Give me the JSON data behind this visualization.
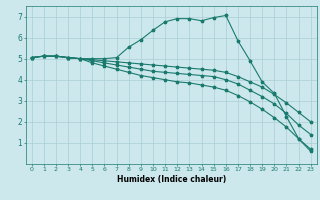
{
  "xlabel": "Humidex (Indice chaleur)",
  "bg_color": "#cce8ec",
  "line_color": "#1a7a6e",
  "grid_color": "#aacdd4",
  "xlim": [
    -0.5,
    23.5
  ],
  "ylim": [
    0,
    7.5
  ],
  "xticks": [
    0,
    1,
    2,
    3,
    4,
    5,
    6,
    7,
    8,
    9,
    10,
    11,
    12,
    13,
    14,
    15,
    16,
    17,
    18,
    19,
    20,
    21,
    22,
    23
  ],
  "yticks": [
    1,
    2,
    3,
    4,
    5,
    6,
    7
  ],
  "lines": [
    {
      "x": [
        0,
        1,
        2,
        3,
        4,
        5,
        6,
        7,
        8,
        9,
        10,
        11,
        12,
        13,
        14,
        15,
        16,
        17,
        18,
        19,
        20,
        21,
        22,
        23
      ],
      "y": [
        5.05,
        5.12,
        5.12,
        5.05,
        5.0,
        5.0,
        5.0,
        5.05,
        5.55,
        5.9,
        6.35,
        6.75,
        6.9,
        6.9,
        6.8,
        6.95,
        7.05,
        5.85,
        4.9,
        3.9,
        3.35,
        2.25,
        1.2,
        0.6
      ]
    },
    {
      "x": [
        0,
        1,
        2,
        3,
        4,
        5,
        6,
        7,
        8,
        9,
        10,
        11,
        12,
        13,
        14,
        15,
        16,
        17,
        18,
        19,
        20,
        21,
        22,
        23
      ],
      "y": [
        5.05,
        5.12,
        5.12,
        5.05,
        5.0,
        4.95,
        4.9,
        4.85,
        4.8,
        4.75,
        4.7,
        4.65,
        4.6,
        4.55,
        4.5,
        4.45,
        4.35,
        4.15,
        3.9,
        3.65,
        3.3,
        2.9,
        2.45,
        2.0
      ]
    },
    {
      "x": [
        0,
        1,
        2,
        3,
        4,
        5,
        6,
        7,
        8,
        9,
        10,
        11,
        12,
        13,
        14,
        15,
        16,
        17,
        18,
        19,
        20,
        21,
        22,
        23
      ],
      "y": [
        5.05,
        5.12,
        5.12,
        5.05,
        5.0,
        4.9,
        4.8,
        4.7,
        4.6,
        4.5,
        4.4,
        4.35,
        4.3,
        4.25,
        4.2,
        4.15,
        4.0,
        3.8,
        3.5,
        3.2,
        2.85,
        2.4,
        1.85,
        1.4
      ]
    },
    {
      "x": [
        0,
        1,
        2,
        3,
        4,
        5,
        6,
        7,
        8,
        9,
        10,
        11,
        12,
        13,
        14,
        15,
        16,
        17,
        18,
        19,
        20,
        21,
        22,
        23
      ],
      "y": [
        5.05,
        5.12,
        5.12,
        5.05,
        5.0,
        4.8,
        4.65,
        4.5,
        4.35,
        4.2,
        4.1,
        4.0,
        3.9,
        3.85,
        3.75,
        3.65,
        3.5,
        3.25,
        2.95,
        2.6,
        2.2,
        1.75,
        1.2,
        0.7
      ]
    }
  ]
}
